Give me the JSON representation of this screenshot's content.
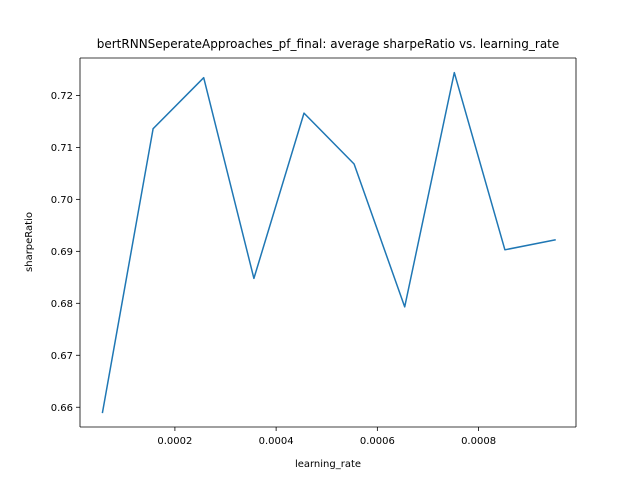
{
  "chart_data": {
    "type": "line",
    "title": "bertRNNSeperateApproaches_pf_final: average sharpeRatio vs. learning_rate",
    "xlabel": "learning_rate",
    "ylabel": "sharpeRatio",
    "xlim": [
      1.25e-05,
      0.0009925
    ],
    "ylim": [
      0.6562,
      0.7272
    ],
    "xticks": [
      0.0002,
      0.0004,
      0.0006,
      0.0008
    ],
    "xtick_labels": [
      "0.0002",
      "0.0004",
      "0.0006",
      "0.0008"
    ],
    "yticks": [
      0.66,
      0.67,
      0.68,
      0.69,
      0.7,
      0.71,
      0.72
    ],
    "ytick_labels": [
      "0.66",
      "0.67",
      "0.68",
      "0.69",
      "0.70",
      "0.71",
      "0.72"
    ],
    "grid": false,
    "series": [
      {
        "color": "#1f77b4",
        "x": [
          5.7e-05,
          0.000157,
          0.000257,
          0.000356,
          0.000455,
          0.000554,
          0.000654,
          0.000752,
          0.000852,
          0.000951
        ],
        "y": [
          0.659,
          0.7136,
          0.7234,
          0.6848,
          0.7166,
          0.7068,
          0.6793,
          0.7244,
          0.6903,
          0.6922
        ]
      }
    ]
  }
}
